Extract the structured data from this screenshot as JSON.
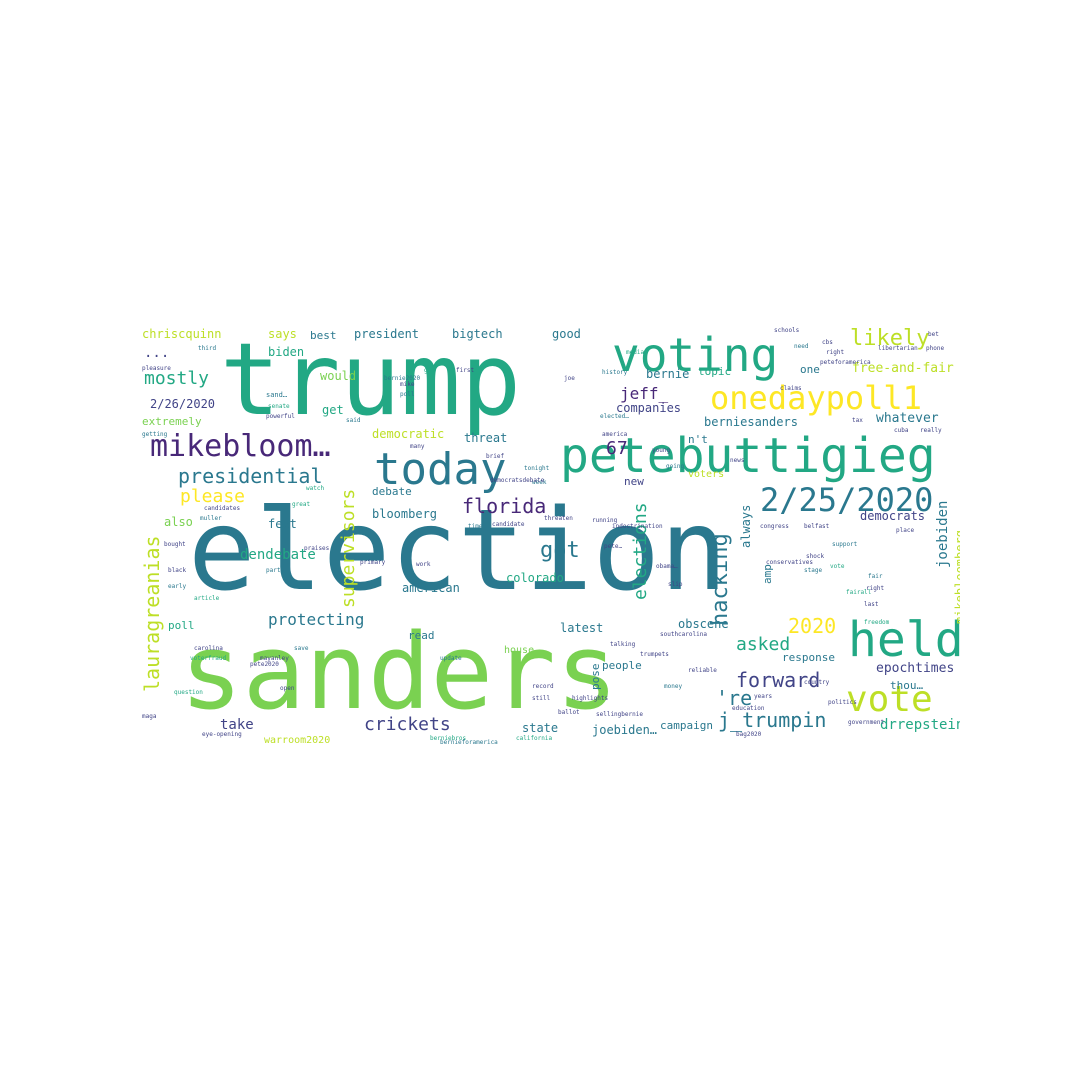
{
  "words": [
    {
      "text": "election",
      "color": "#2a788e"
    },
    {
      "text": "sanders",
      "color": "#7ad151"
    },
    {
      "text": "trump",
      "color": "#22a884"
    },
    {
      "text": "petebuttigieg",
      "color": "#22a884"
    },
    {
      "text": "voting",
      "color": "#22a884"
    },
    {
      "text": "today",
      "color": "#2a788e"
    },
    {
      "text": "held",
      "color": "#22a884"
    },
    {
      "text": "2/25/2020",
      "color": "#2a788e"
    },
    {
      "text": "onedaypoll1",
      "color": "#fde725"
    },
    {
      "text": "mikebloom…",
      "color": "#482878"
    },
    {
      "text": "vote",
      "color": "#bddf26"
    },
    {
      "text": "presidential",
      "color": "#2a788e"
    },
    {
      "text": "likely",
      "color": "#bddf26"
    },
    {
      "text": "lauragreanias",
      "color": "#bddf26"
    },
    {
      "text": "hacking",
      "color": "#2a788e"
    },
    {
      "text": "elections",
      "color": "#22a884"
    },
    {
      "text": "forward",
      "color": "#414487"
    },
    {
      "text": "j_trumpin",
      "color": "#2a788e"
    },
    {
      "text": "florida",
      "color": "#482878"
    },
    {
      "text": "got",
      "color": "#2a788e"
    },
    {
      "text": "supervisors",
      "color": "#bddf26"
    },
    {
      "text": "mostly",
      "color": "#22a884"
    },
    {
      "text": "2020",
      "color": "#fde725"
    },
    {
      "text": "asked",
      "color": "#22a884"
    },
    {
      "text": "crickets",
      "color": "#414487"
    },
    {
      "text": "protecting",
      "color": "#2a788e"
    },
    {
      "text": "please",
      "color": "#fde725"
    },
    {
      "text": "jeff_",
      "color": "#482878"
    },
    {
      "text": "67",
      "color": "#482878"
    },
    {
      "text": "'re",
      "color": "#2a788e"
    },
    {
      "text": "joebiden",
      "color": "#2a788e"
    },
    {
      "text": "mikebloomberg",
      "color": "#bddf26"
    },
    {
      "text": "dendebate",
      "color": "#22a884"
    },
    {
      "text": "take",
      "color": "#414487"
    },
    {
      "text": "drrepstein",
      "color": "#22a884"
    },
    {
      "text": "epochtimes",
      "color": "#414487"
    },
    {
      "text": "2/26/2020",
      "color": "#414487"
    },
    {
      "text": "whatever",
      "color": "#2a788e"
    },
    {
      "text": "free-and-fair",
      "color": "#bddf26"
    },
    {
      "text": "berniesanders",
      "color": "#2a788e"
    },
    {
      "text": "companies",
      "color": "#414487"
    },
    {
      "text": "bernie",
      "color": "#2a788e"
    },
    {
      "text": "threat",
      "color": "#2a788e"
    },
    {
      "text": "democratic",
      "color": "#bddf26"
    },
    {
      "text": "obscene",
      "color": "#2a788e"
    },
    {
      "text": "bloomberg",
      "color": "#2a788e"
    },
    {
      "text": "colorado",
      "color": "#22a884"
    },
    {
      "text": "american",
      "color": "#2a788e"
    },
    {
      "text": "debate",
      "color": "#2a788e"
    },
    {
      "text": "president",
      "color": "#2a788e"
    },
    {
      "text": "bigtech",
      "color": "#2a788e"
    },
    {
      "text": "chriscquinn",
      "color": "#bddf26"
    },
    {
      "text": "says",
      "color": "#bddf26"
    },
    {
      "text": "best",
      "color": "#2a788e"
    },
    {
      "text": "good",
      "color": "#2a788e"
    },
    {
      "text": "biden",
      "color": "#22a884"
    },
    {
      "text": "would",
      "color": "#7ad151"
    },
    {
      "text": "get",
      "color": "#22a884"
    },
    {
      "text": "extremely",
      "color": "#7ad151"
    },
    {
      "text": "also",
      "color": "#7ad151"
    },
    {
      "text": "feet",
      "color": "#2a788e"
    },
    {
      "text": "poll",
      "color": "#22a884"
    },
    {
      "text": "read",
      "color": "#2a788e"
    },
    {
      "text": "latest",
      "color": "#2a788e"
    },
    {
      "text": "people",
      "color": "#2a788e"
    },
    {
      "text": "response",
      "color": "#2a788e"
    },
    {
      "text": "thou…",
      "color": "#2a788e"
    },
    {
      "text": "state",
      "color": "#2a788e"
    },
    {
      "text": "campaign",
      "color": "#2a788e"
    },
    {
      "text": "warroom2020",
      "color": "#bddf26"
    },
    {
      "text": "joebiden…",
      "color": "#2a788e"
    },
    {
      "text": "always",
      "color": "#2a788e"
    },
    {
      "text": "democrats",
      "color": "#414487"
    },
    {
      "text": "topic",
      "color": "#22a884"
    },
    {
      "text": "one",
      "color": "#2a788e"
    },
    {
      "text": "n't",
      "color": "#2a788e"
    },
    {
      "text": "new",
      "color": "#414487"
    },
    {
      "text": "amp",
      "color": "#2a788e"
    },
    {
      "text": "pose",
      "color": "#2a788e"
    },
    {
      "text": "house",
      "color": "#7ad151"
    },
    {
      "text": "voters",
      "color": "#bddf26"
    },
    {
      "text": "...",
      "color": "#414487"
    }
  ],
  "minor_words": [
    {
      "text": "pleasure",
      "color": "#414487"
    },
    {
      "text": "third",
      "color": "#2a788e"
    },
    {
      "text": "gop",
      "color": "#22a884"
    },
    {
      "text": "first",
      "color": "#414487"
    },
    {
      "text": "sand…",
      "color": "#2a788e"
    },
    {
      "text": "mike",
      "color": "#414487"
    },
    {
      "text": "poll",
      "color": "#2a788e"
    },
    {
      "text": "senate",
      "color": "#22a884"
    },
    {
      "text": "said",
      "color": "#2a788e"
    },
    {
      "text": "joe",
      "color": "#414487"
    },
    {
      "text": "history",
      "color": "#2a788e"
    },
    {
      "text": "media",
      "color": "#22a884"
    },
    {
      "text": "america",
      "color": "#414487"
    },
    {
      "text": "elected…",
      "color": "#2a788e"
    },
    {
      "text": "getting",
      "color": "#2a788e"
    },
    {
      "text": "schools",
      "color": "#414487"
    },
    {
      "text": "libertarian",
      "color": "#414487"
    },
    {
      "text": "phone",
      "color": "#414487"
    },
    {
      "text": "need",
      "color": "#2a788e"
    },
    {
      "text": "right",
      "color": "#414487"
    },
    {
      "text": "cuba",
      "color": "#414487"
    },
    {
      "text": "really",
      "color": "#414487"
    },
    {
      "text": "tax",
      "color": "#414487"
    },
    {
      "text": "bet",
      "color": "#414487"
    },
    {
      "text": "cbs",
      "color": "#414487"
    },
    {
      "text": "fairall",
      "color": "#22a884"
    },
    {
      "text": "peteforamerica",
      "color": "#414487"
    },
    {
      "text": "tonight",
      "color": "#2a788e"
    },
    {
      "text": "week",
      "color": "#2a788e"
    },
    {
      "text": "running",
      "color": "#414487"
    },
    {
      "text": "threaten",
      "color": "#414487"
    },
    {
      "text": "candidate",
      "color": "#414487"
    },
    {
      "text": "time",
      "color": "#2a788e"
    },
    {
      "text": "congress",
      "color": "#414487"
    },
    {
      "text": "belfast",
      "color": "#414487"
    },
    {
      "text": "support",
      "color": "#2a788e"
    },
    {
      "text": "place",
      "color": "#414487"
    },
    {
      "text": "vote",
      "color": "#22a884"
    },
    {
      "text": "last",
      "color": "#414487"
    },
    {
      "text": "fair",
      "color": "#2a788e"
    },
    {
      "text": "right",
      "color": "#414487"
    },
    {
      "text": "great",
      "color": "#22a884"
    },
    {
      "text": "muller",
      "color": "#2a788e"
    },
    {
      "text": "candidates",
      "color": "#414487"
    },
    {
      "text": "bought",
      "color": "#414487"
    },
    {
      "text": "party",
      "color": "#2a788e"
    },
    {
      "text": "praises",
      "color": "#414487"
    },
    {
      "text": "primary",
      "color": "#414487"
    },
    {
      "text": "black",
      "color": "#414487"
    },
    {
      "text": "early",
      "color": "#2a788e"
    },
    {
      "text": "work",
      "color": "#414487"
    },
    {
      "text": "article",
      "color": "#22a884"
    },
    {
      "text": "carolina",
      "color": "#414487"
    },
    {
      "text": "voterfraud",
      "color": "#22a884"
    },
    {
      "text": "mayanley",
      "color": "#414487"
    },
    {
      "text": "update",
      "color": "#2a788e"
    },
    {
      "text": "talking",
      "color": "#414487"
    },
    {
      "text": "southcarolina",
      "color": "#414487"
    },
    {
      "text": "bernie2020",
      "color": "#2a788e"
    },
    {
      "text": "trumpets",
      "color": "#414487"
    },
    {
      "text": "pete2020",
      "color": "#414487"
    },
    {
      "text": "open",
      "color": "#414487"
    },
    {
      "text": "ballot",
      "color": "#414487"
    },
    {
      "text": "record",
      "color": "#414487"
    },
    {
      "text": "still",
      "color": "#414487"
    },
    {
      "text": "money",
      "color": "#2a788e"
    },
    {
      "text": "reliable",
      "color": "#414487"
    },
    {
      "text": "politics",
      "color": "#414487"
    },
    {
      "text": "education",
      "color": "#414487"
    },
    {
      "text": "question",
      "color": "#22a884"
    },
    {
      "text": "eye-opening",
      "color": "#414487"
    },
    {
      "text": "bag2020",
      "color": "#414487"
    },
    {
      "text": "california",
      "color": "#22a884"
    },
    {
      "text": "berniebros",
      "color": "#22a884"
    },
    {
      "text": "maga",
      "color": "#414487"
    },
    {
      "text": "save",
      "color": "#2a788e"
    },
    {
      "text": "freedom",
      "color": "#22a884"
    },
    {
      "text": "government",
      "color": "#414487"
    },
    {
      "text": "claims",
      "color": "#414487"
    },
    {
      "text": "young",
      "color": "#414487"
    },
    {
      "text": "going",
      "color": "#2a788e"
    },
    {
      "text": "watch",
      "color": "#22a884"
    },
    {
      "text": "brief",
      "color": "#414487"
    },
    {
      "text": "country",
      "color": "#414487"
    },
    {
      "text": "democratsdebate",
      "color": "#414487"
    },
    {
      "text": "shock",
      "color": "#414487"
    },
    {
      "text": "stage",
      "color": "#2a788e"
    },
    {
      "text": "years",
      "color": "#414487"
    },
    {
      "text": "many",
      "color": "#414487"
    },
    {
      "text": "powerful",
      "color": "#414487"
    },
    {
      "text": "news",
      "color": "#414487"
    },
    {
      "text": "sellingbernie",
      "color": "#414487"
    },
    {
      "text": "highlights",
      "color": "#414487"
    },
    {
      "text": "obama…",
      "color": "#414487"
    },
    {
      "text": "indoctrination",
      "color": "#414487"
    },
    {
      "text": "conservatives",
      "color": "#414487"
    },
    {
      "text": "pete…",
      "color": "#414487"
    },
    {
      "text": "slip",
      "color": "#414487"
    },
    {
      "text": "bernieforamerica",
      "color": "#2a788e"
    }
  ]
}
